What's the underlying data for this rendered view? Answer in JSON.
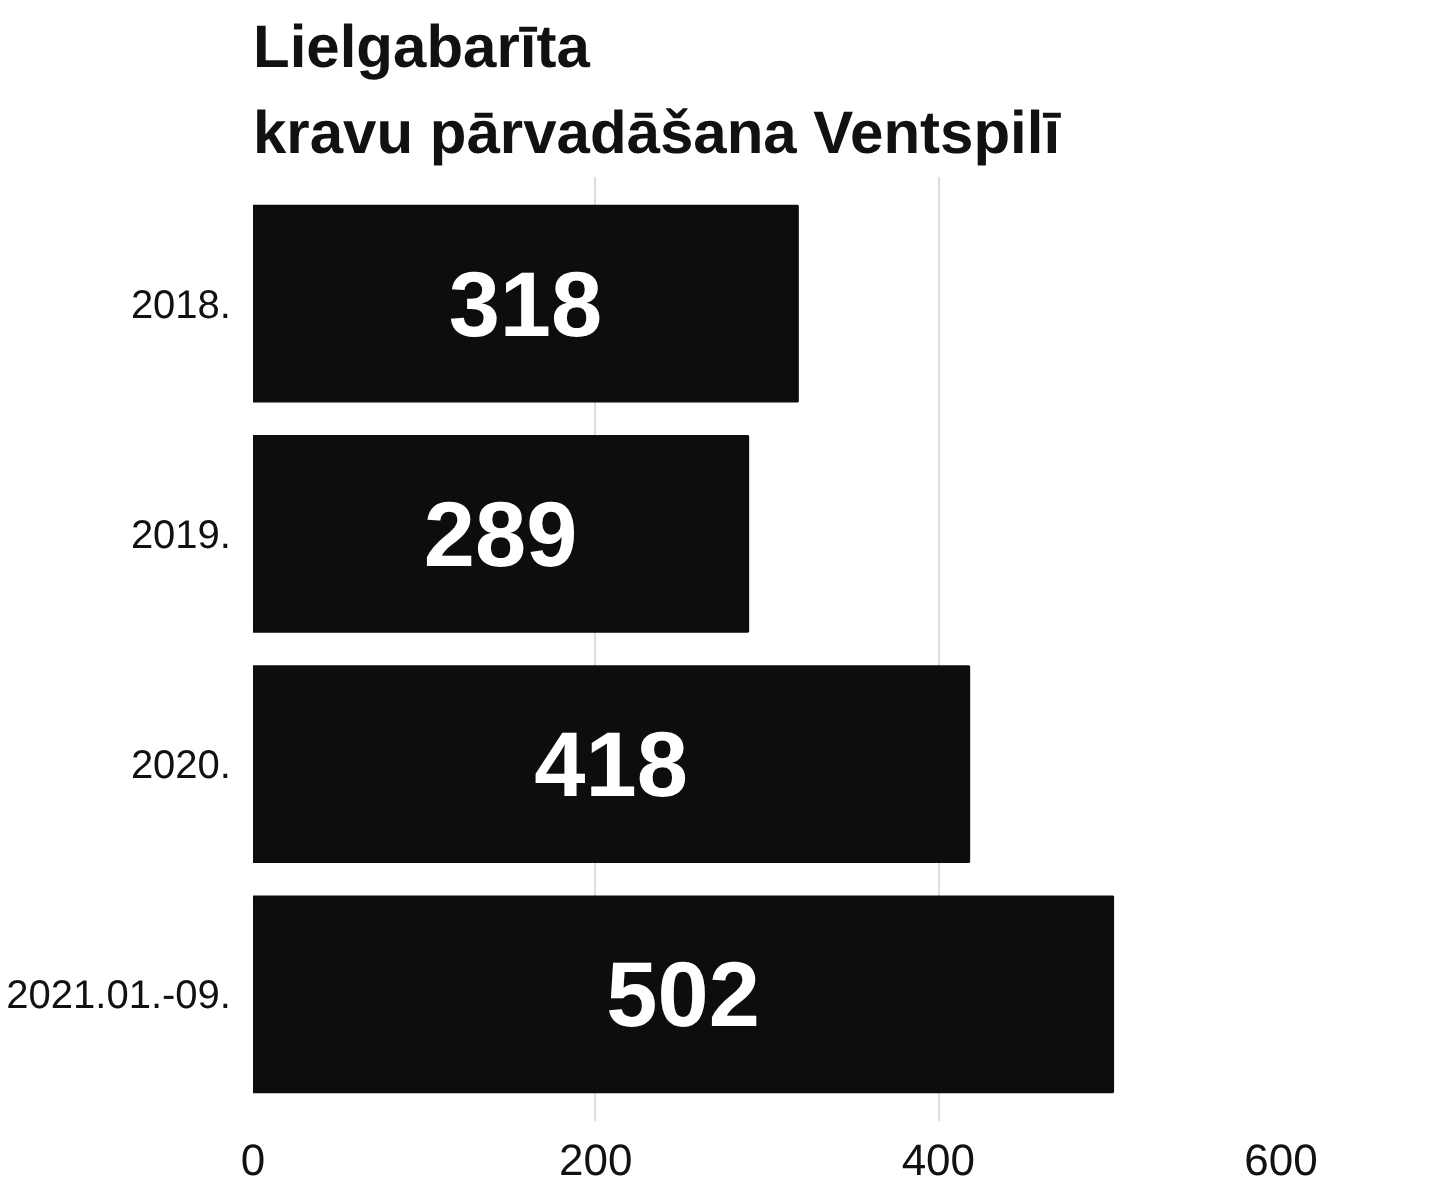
{
  "chart_data": {
    "type": "bar",
    "orientation": "horizontal",
    "title": "Lielgabarīta\nkravu pārvadāšana Ventspilī",
    "categories": [
      "2018.",
      "2019.",
      "2020.",
      "2021.01.-09."
    ],
    "values": [
      318,
      289,
      418,
      502
    ],
    "color": "#0d0d0d",
    "xlim": [
      0,
      600
    ],
    "xticks": [
      0,
      200,
      400,
      600
    ],
    "grid": "x",
    "data_labels": true
  }
}
